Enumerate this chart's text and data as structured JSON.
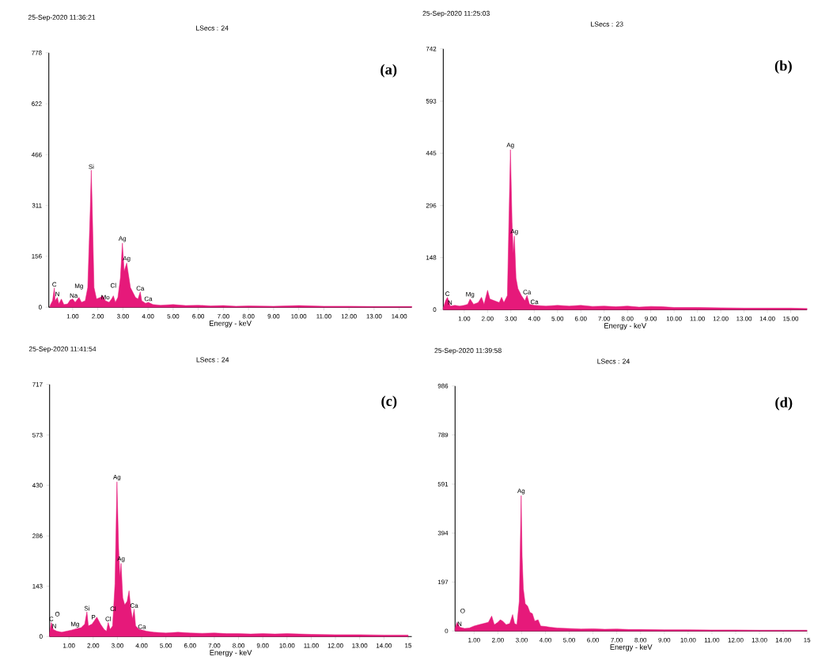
{
  "chart_data": [
    {
      "type": "area",
      "title": "25-Sep-2020 11:36:21",
      "subtitle": "LSecs : 24",
      "xlabel": "Energy - keV",
      "xlim": [
        0.05,
        14.5
      ],
      "ylim": [
        0,
        778
      ],
      "xticks": [
        {
          "value": 1,
          "label": "1.00"
        },
        {
          "value": 2,
          "label": "2.00"
        },
        {
          "value": 3,
          "label": "3.00"
        },
        {
          "value": 4,
          "label": "4.00"
        },
        {
          "value": 5,
          "label": "5.00"
        },
        {
          "value": 6,
          "label": "6.00"
        },
        {
          "value": 7,
          "label": "7.00"
        },
        {
          "value": 8,
          "label": "8.00"
        },
        {
          "value": 9,
          "label": "9.00"
        },
        {
          "value": 10,
          "label": "10.00"
        },
        {
          "value": 11,
          "label": "11.00"
        },
        {
          "value": 12,
          "label": "12.00"
        },
        {
          "value": 13,
          "label": "13.00"
        },
        {
          "value": 14,
          "label": "14.00"
        }
      ],
      "yticks": [
        0,
        156,
        311,
        466,
        622,
        778
      ],
      "annotations": [
        "(a)",
        {
          "text": "C",
          "x": 0.27,
          "y": 59
        },
        {
          "text": "N",
          "x": 0.39,
          "y": 30
        },
        {
          "text": "Na",
          "x": 1.04,
          "y": 25
        },
        {
          "text": "Mg",
          "x": 1.25,
          "y": 30
        },
        {
          "text": "Si",
          "x": 1.74,
          "y": 419
        },
        {
          "text": "Mo",
          "x": 2.3,
          "y": 20
        },
        {
          "text": "Cl",
          "x": 2.62,
          "y": 35
        },
        {
          "text": "Ag",
          "x": 2.98,
          "y": 196
        },
        {
          "text": "Ag",
          "x": 3.15,
          "y": 135
        },
        {
          "text": "Ca",
          "x": 3.69,
          "y": 47
        },
        {
          "text": "Ca",
          "x": 4.01,
          "y": 15
        }
      ],
      "series": [
        {
          "color": "#e6197a",
          "x": [
            0.1,
            0.2,
            0.27,
            0.3,
            0.39,
            0.45,
            0.55,
            0.65,
            0.8,
            0.9,
            1.0,
            1.1,
            1.25,
            1.35,
            1.5,
            1.6,
            1.7,
            1.74,
            1.78,
            1.85,
            1.95,
            2.1,
            2.2,
            2.3,
            2.45,
            2.55,
            2.62,
            2.7,
            2.8,
            2.9,
            2.98,
            3.05,
            3.15,
            3.22,
            3.3,
            3.4,
            3.5,
            3.6,
            3.69,
            3.75,
            3.9,
            4.01,
            4.2,
            4.5,
            5.0,
            5.5,
            6.0,
            6.5,
            7.0,
            7.5,
            8.0,
            9.0,
            10.0,
            11.0,
            12.0,
            13.0,
            14.0,
            14.5
          ],
          "values": [
            5,
            20,
            59,
            20,
            30,
            10,
            25,
            8,
            10,
            22,
            25,
            15,
            30,
            15,
            20,
            60,
            300,
            419,
            300,
            60,
            25,
            30,
            35,
            20,
            15,
            25,
            35,
            15,
            30,
            90,
            196,
            110,
            135,
            100,
            60,
            45,
            30,
            25,
            47,
            20,
            12,
            15,
            8,
            6,
            8,
            5,
            6,
            4,
            5,
            3,
            4,
            3,
            5,
            3,
            3,
            2,
            2,
            2
          ]
        }
      ]
    },
    {
      "type": "area",
      "title": "25-Sep-2020 11:25:03",
      "subtitle": "LSecs : 23",
      "xlabel": "Energy - keV",
      "xlim": [
        0.1,
        15.7
      ],
      "ylim": [
        0,
        742
      ],
      "xticks": [
        {
          "value": 1,
          "label": "1.00"
        },
        {
          "value": 2,
          "label": "2.00"
        },
        {
          "value": 3,
          "label": "3.00"
        },
        {
          "value": 4,
          "label": "4.00"
        },
        {
          "value": 5,
          "label": "5.00"
        },
        {
          "value": 6,
          "label": "6.00"
        },
        {
          "value": 7,
          "label": "7.00"
        },
        {
          "value": 8,
          "label": "8.00"
        },
        {
          "value": 9,
          "label": "9.00"
        },
        {
          "value": 10,
          "label": "10.00"
        },
        {
          "value": 11,
          "label": "11.00"
        },
        {
          "value": 12,
          "label": "12.00"
        },
        {
          "value": 13,
          "label": "13.00"
        },
        {
          "value": 14,
          "label": "14.00"
        },
        {
          "value": 15,
          "label": "15.00"
        }
      ],
      "yticks": [
        0,
        148,
        296,
        445,
        593,
        742
      ],
      "annotations": [
        "(b)",
        {
          "text": "C",
          "x": 0.28,
          "y": 35
        },
        {
          "text": "N",
          "x": 0.39,
          "y": 10
        },
        {
          "text": "Mg",
          "x": 1.25,
          "y": 30
        },
        {
          "text": "Ag",
          "x": 2.98,
          "y": 455
        },
        {
          "text": "Ag",
          "x": 3.15,
          "y": 209
        },
        {
          "text": "Ca",
          "x": 3.69,
          "y": 40
        },
        {
          "text": "Ca",
          "x": 4.01,
          "y": 12
        }
      ],
      "series": [
        {
          "color": "#e6197a",
          "x": [
            0.1,
            0.2,
            0.28,
            0.4,
            0.6,
            0.8,
            1.0,
            1.15,
            1.25,
            1.4,
            1.6,
            1.74,
            1.85,
            2.0,
            2.1,
            2.3,
            2.5,
            2.6,
            2.7,
            2.85,
            2.9,
            2.98,
            3.05,
            3.1,
            3.15,
            3.22,
            3.3,
            3.45,
            3.6,
            3.69,
            3.8,
            4.0,
            4.5,
            5.0,
            5.5,
            6.0,
            6.5,
            7.0,
            7.5,
            8.0,
            8.5,
            9.0,
            9.5,
            10.0,
            11.0,
            12.0,
            13.0,
            14.0,
            15.0,
            15.7
          ],
          "values": [
            5,
            25,
            35,
            10,
            12,
            10,
            12,
            15,
            30,
            15,
            20,
            35,
            15,
            55,
            30,
            25,
            20,
            35,
            20,
            40,
            200,
            455,
            250,
            160,
            209,
            90,
            60,
            40,
            25,
            40,
            15,
            12,
            10,
            12,
            10,
            12,
            9,
            10,
            8,
            10,
            7,
            9,
            8,
            6,
            6,
            5,
            4,
            4,
            4,
            3
          ]
        }
      ]
    },
    {
      "type": "area",
      "title": "25-Sep-2020 11:41:54",
      "subtitle": "LSecs : 24",
      "xlabel": "Energy - keV",
      "xlim": [
        0.2,
        15.15
      ],
      "ylim": [
        0,
        717
      ],
      "xticks": [
        {
          "value": 1,
          "label": "1.00"
        },
        {
          "value": 2,
          "label": "2.00"
        },
        {
          "value": 3,
          "label": "3.00"
        },
        {
          "value": 4,
          "label": "4.00"
        },
        {
          "value": 5,
          "label": "5.00"
        },
        {
          "value": 6,
          "label": "6.00"
        },
        {
          "value": 7,
          "label": "7.00"
        },
        {
          "value": 8,
          "label": "8.00"
        },
        {
          "value": 9,
          "label": "9.00"
        },
        {
          "value": 10,
          "label": "10.00"
        },
        {
          "value": 11,
          "label": "11.00"
        },
        {
          "value": 12,
          "label": "12.00"
        },
        {
          "value": 13,
          "label": "13.00"
        },
        {
          "value": 14,
          "label": "14.00"
        },
        {
          "value": 15,
          "label": "15"
        }
      ],
      "yticks": [
        0,
        143,
        286,
        430,
        573,
        717
      ],
      "annotations": [
        "(c)",
        {
          "text": "C",
          "x": 0.27,
          "y": 40
        },
        {
          "text": "N",
          "x": 0.39,
          "y": 20
        },
        {
          "text": "O",
          "x": 0.52,
          "y": 15
        },
        {
          "text": "Mg",
          "x": 1.25,
          "y": 22
        },
        {
          "text": "Si",
          "x": 1.74,
          "y": 70
        },
        {
          "text": "P",
          "x": 2.01,
          "y": 45
        },
        {
          "text": "Cl",
          "x": 2.62,
          "y": 40
        },
        {
          "text": "Cl",
          "x": 2.82,
          "y": 30
        },
        {
          "text": "Ag",
          "x": 2.98,
          "y": 440
        },
        {
          "text": "Ag",
          "x": 3.15,
          "y": 208
        },
        {
          "text": "Ca",
          "x": 3.69,
          "y": 78
        },
        {
          "text": "Ca",
          "x": 4.01,
          "y": 18
        }
      ],
      "series": [
        {
          "color": "#e6197a",
          "x": [
            0.2,
            0.27,
            0.35,
            0.5,
            0.7,
            0.9,
            1.1,
            1.3,
            1.5,
            1.65,
            1.74,
            1.8,
            1.95,
            2.05,
            2.15,
            2.3,
            2.45,
            2.55,
            2.62,
            2.7,
            2.8,
            2.9,
            2.98,
            3.05,
            3.1,
            3.15,
            3.22,
            3.3,
            3.4,
            3.48,
            3.55,
            3.62,
            3.69,
            3.75,
            3.9,
            4.05,
            4.2,
            4.5,
            5.0,
            5.5,
            6.0,
            6.5,
            7.0,
            7.5,
            8.0,
            8.5,
            9.0,
            9.5,
            10.0,
            11.0,
            12.0,
            13.0,
            14.0,
            15.0
          ],
          "values": [
            10,
            40,
            20,
            15,
            12,
            15,
            18,
            22,
            25,
            35,
            70,
            30,
            35,
            45,
            55,
            35,
            20,
            15,
            40,
            20,
            30,
            150,
            440,
            250,
            170,
            208,
            110,
            90,
            100,
            130,
            80,
            50,
            78,
            30,
            20,
            18,
            15,
            12,
            10,
            12,
            10,
            9,
            10,
            8,
            8,
            7,
            8,
            7,
            8,
            6,
            5,
            5,
            4,
            4
          ]
        }
      ]
    },
    {
      "type": "area",
      "title": "25-Sep-2020 11:39:58",
      "subtitle": "LSecs : 24",
      "xlabel": "Energy - keV",
      "xlim": [
        0.2,
        15.0
      ],
      "ylim": [
        0,
        986
      ],
      "xticks": [
        {
          "value": 1,
          "label": "1.00"
        },
        {
          "value": 2,
          "label": "2.00"
        },
        {
          "value": 3,
          "label": "3.00"
        },
        {
          "value": 4,
          "label": "4.00"
        },
        {
          "value": 5,
          "label": "5.00"
        },
        {
          "value": 6,
          "label": "6.00"
        },
        {
          "value": 7,
          "label": "7.00"
        },
        {
          "value": 8,
          "label": "8.00"
        },
        {
          "value": 9,
          "label": "9.00"
        },
        {
          "value": 10,
          "label": "10.00"
        },
        {
          "value": 11,
          "label": "11.00"
        },
        {
          "value": 12,
          "label": "12.00"
        },
        {
          "value": 13,
          "label": "13.00"
        },
        {
          "value": 14,
          "label": "14.00"
        },
        {
          "value": 15,
          "label": "15"
        }
      ],
      "yticks": [
        0,
        197,
        394,
        591,
        789,
        986
      ],
      "annotations": [
        "(d)",
        {
          "text": "N",
          "x": 0.39,
          "y": 15
        },
        {
          "text": "O",
          "x": 0.52,
          "y": 12
        },
        {
          "text": "Ag",
          "x": 2.98,
          "y": 545
        }
      ],
      "series": [
        {
          "color": "#e6197a",
          "x": [
            0.2,
            0.28,
            0.4,
            0.6,
            0.8,
            1.0,
            1.2,
            1.4,
            1.6,
            1.74,
            1.85,
            2.0,
            2.1,
            2.2,
            2.35,
            2.5,
            2.62,
            2.7,
            2.8,
            2.9,
            2.98,
            3.02,
            3.07,
            3.15,
            3.25,
            3.35,
            3.45,
            3.55,
            3.69,
            3.8,
            4.0,
            4.2,
            4.5,
            5.0,
            5.5,
            6.0,
            6.5,
            7.0,
            7.5,
            8.0,
            9.0,
            10.0,
            11.0,
            12.0,
            13.0,
            14.0,
            15.0
          ],
          "values": [
            10,
            35,
            15,
            10,
            12,
            20,
            25,
            30,
            35,
            60,
            25,
            35,
            45,
            40,
            25,
            30,
            66,
            30,
            25,
            120,
            545,
            300,
            170,
            110,
            100,
            75,
            70,
            40,
            45,
            20,
            18,
            15,
            12,
            10,
            8,
            9,
            7,
            8,
            6,
            6,
            5,
            5,
            4,
            4,
            3,
            3,
            3
          ]
        }
      ]
    }
  ]
}
